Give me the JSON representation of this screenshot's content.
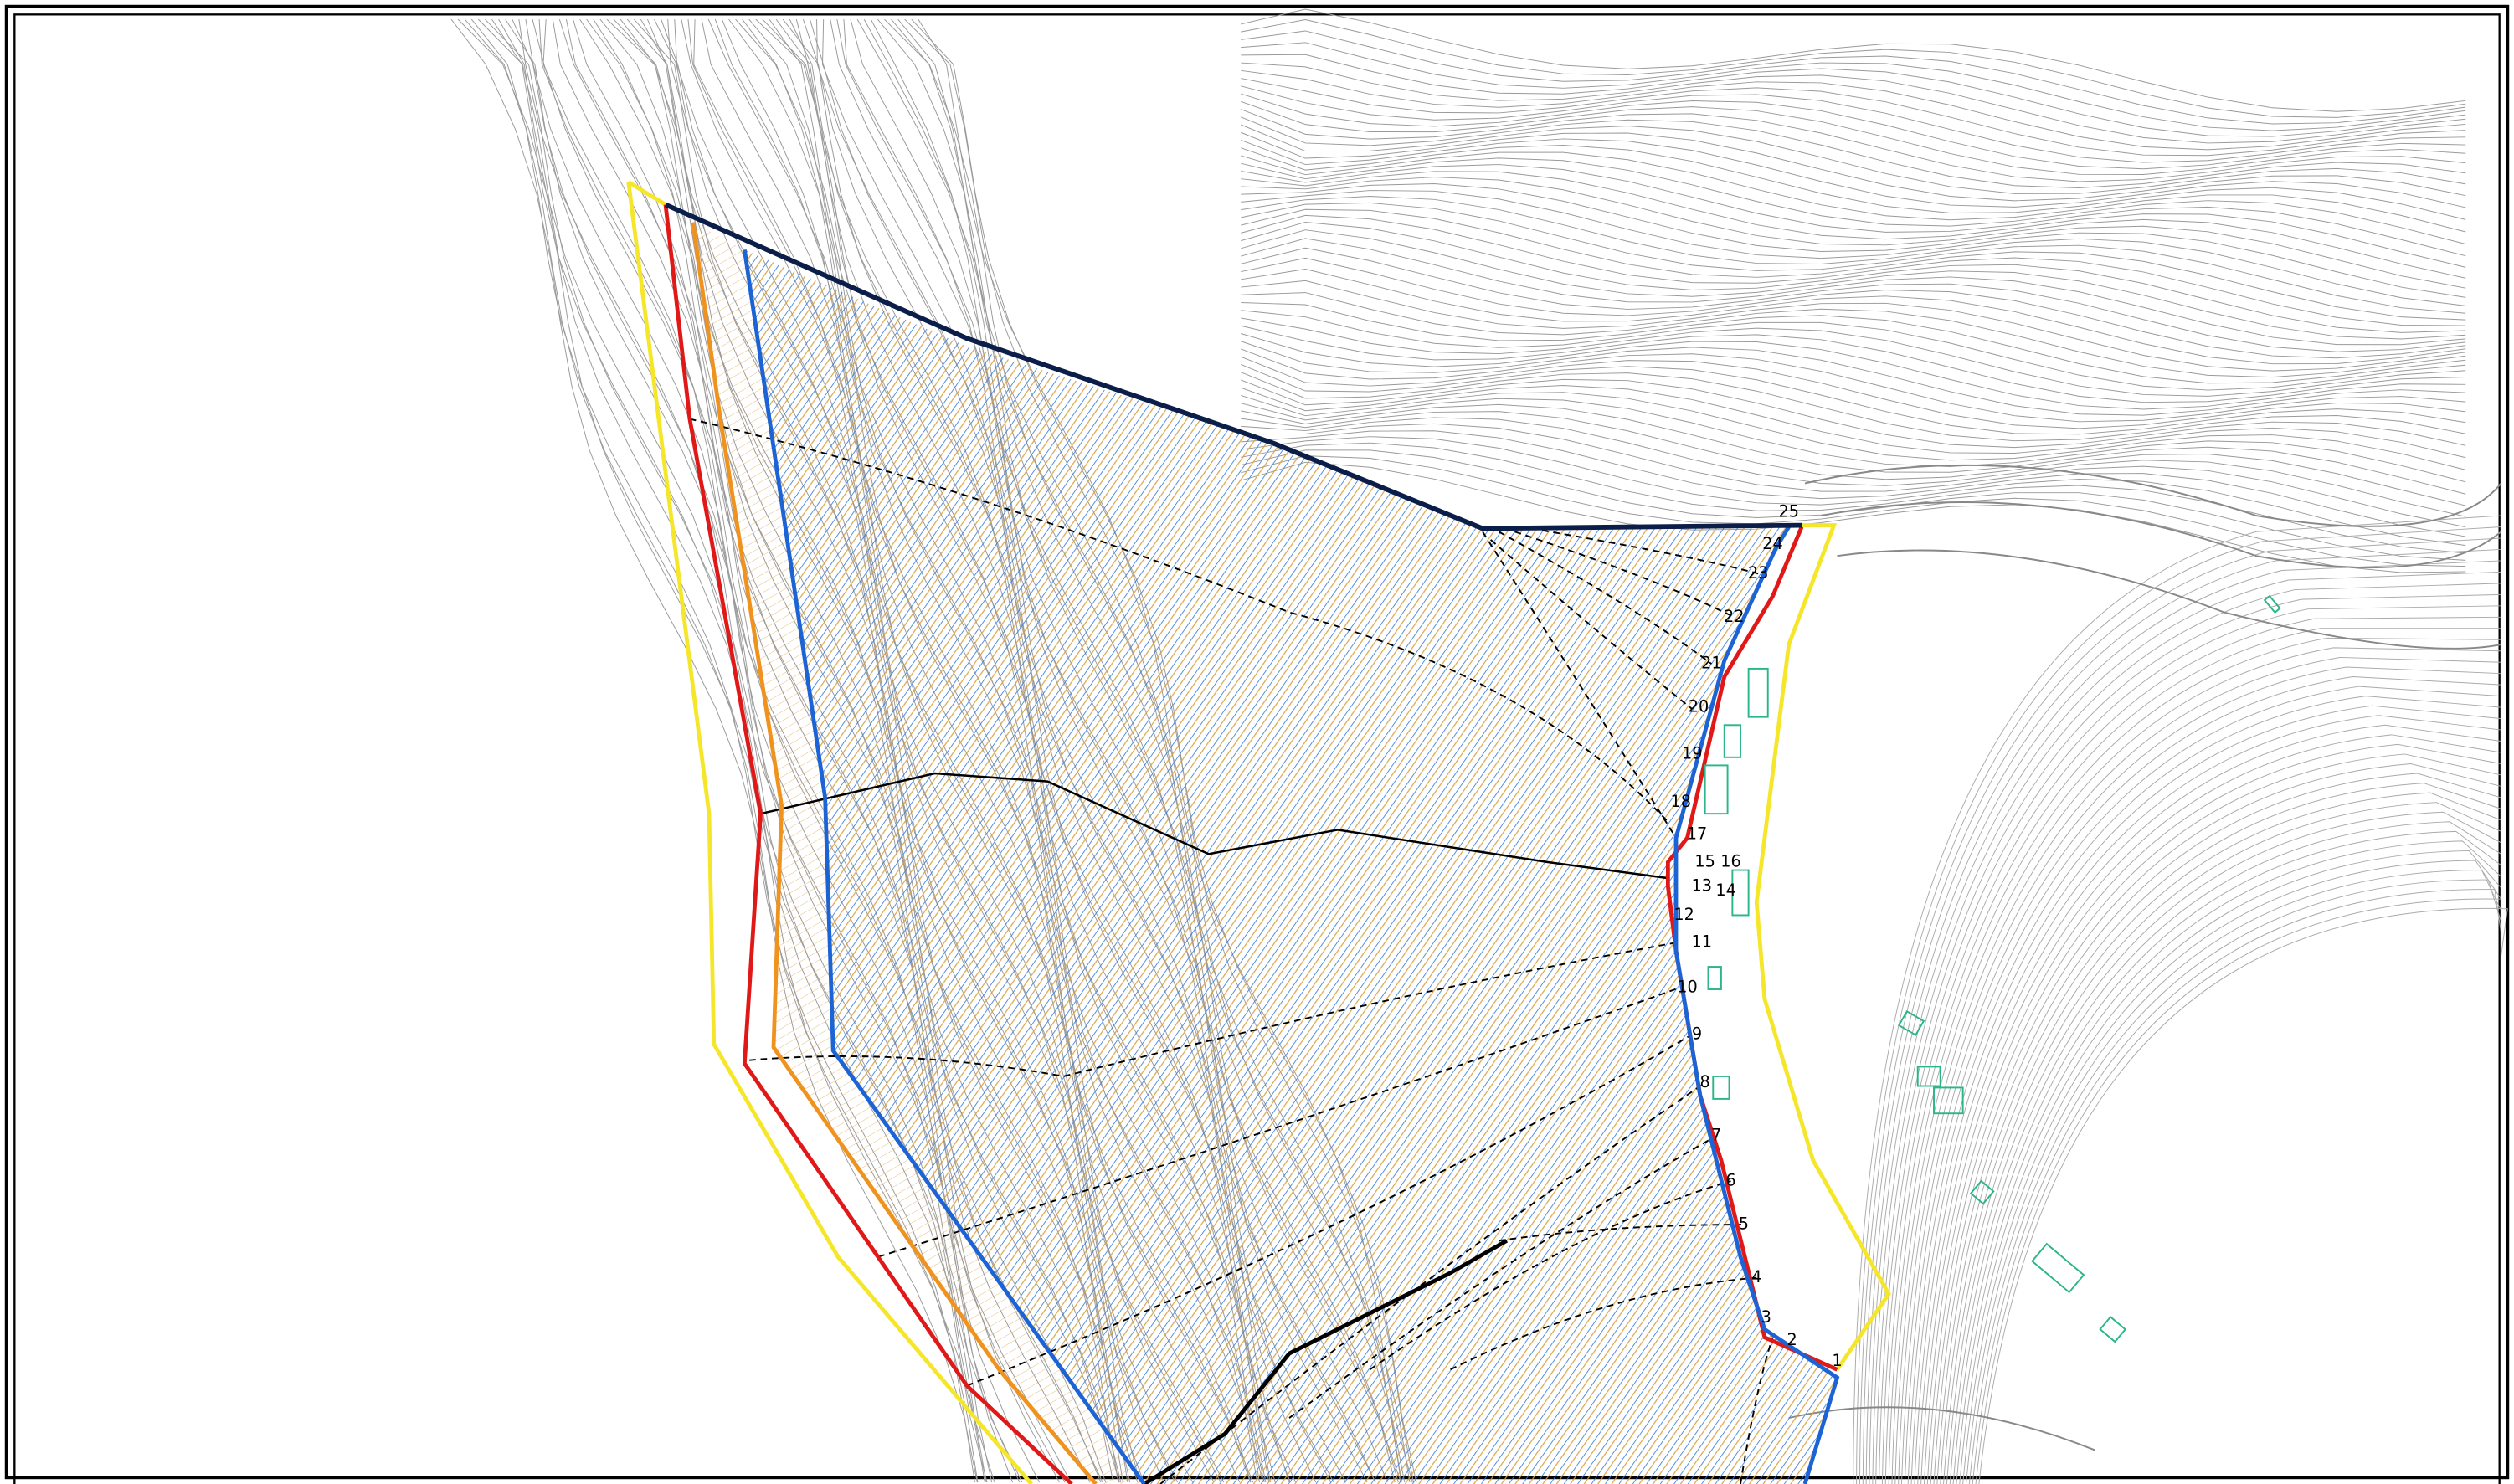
{
  "section_labels": [
    "1",
    "2",
    "3",
    "4",
    "5",
    "6",
    "7",
    "8",
    "9",
    "10",
    "11",
    "12",
    "13",
    "14",
    "15",
    "16",
    "17",
    "18",
    "19",
    "20",
    "21",
    "22",
    "23",
    "24",
    "25"
  ]
}
